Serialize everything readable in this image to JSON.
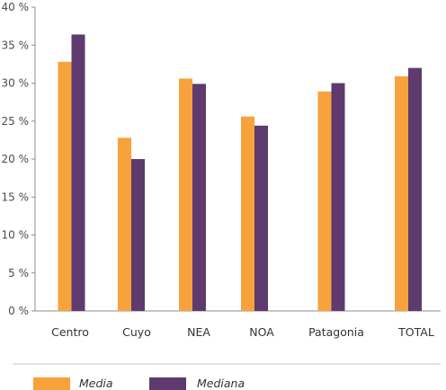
{
  "chart_data": {
    "type": "bar",
    "categories": [
      "Centro",
      "Cuyo",
      "NEA",
      "NOA",
      "Patagonia",
      "TOTAL"
    ],
    "series": [
      {
        "name": "Media",
        "color": "#F7A23B",
        "values": [
          32.8,
          22.8,
          30.6,
          25.6,
          28.9,
          30.9
        ]
      },
      {
        "name": "Mediana",
        "color": "#5E3A6E",
        "values": [
          36.4,
          20.0,
          29.9,
          24.4,
          30.0,
          32.0
        ]
      }
    ],
    "ylim": [
      0,
      40
    ],
    "yticks": [
      0,
      5,
      10,
      15,
      20,
      25,
      30,
      35,
      40
    ],
    "ytick_labels": [
      "0 %",
      "5 %",
      "10 %",
      "15 %",
      "20 %",
      "25 %",
      "30 %",
      "35 %",
      "40 %"
    ],
    "grid": false,
    "legend_position": "bottom"
  }
}
